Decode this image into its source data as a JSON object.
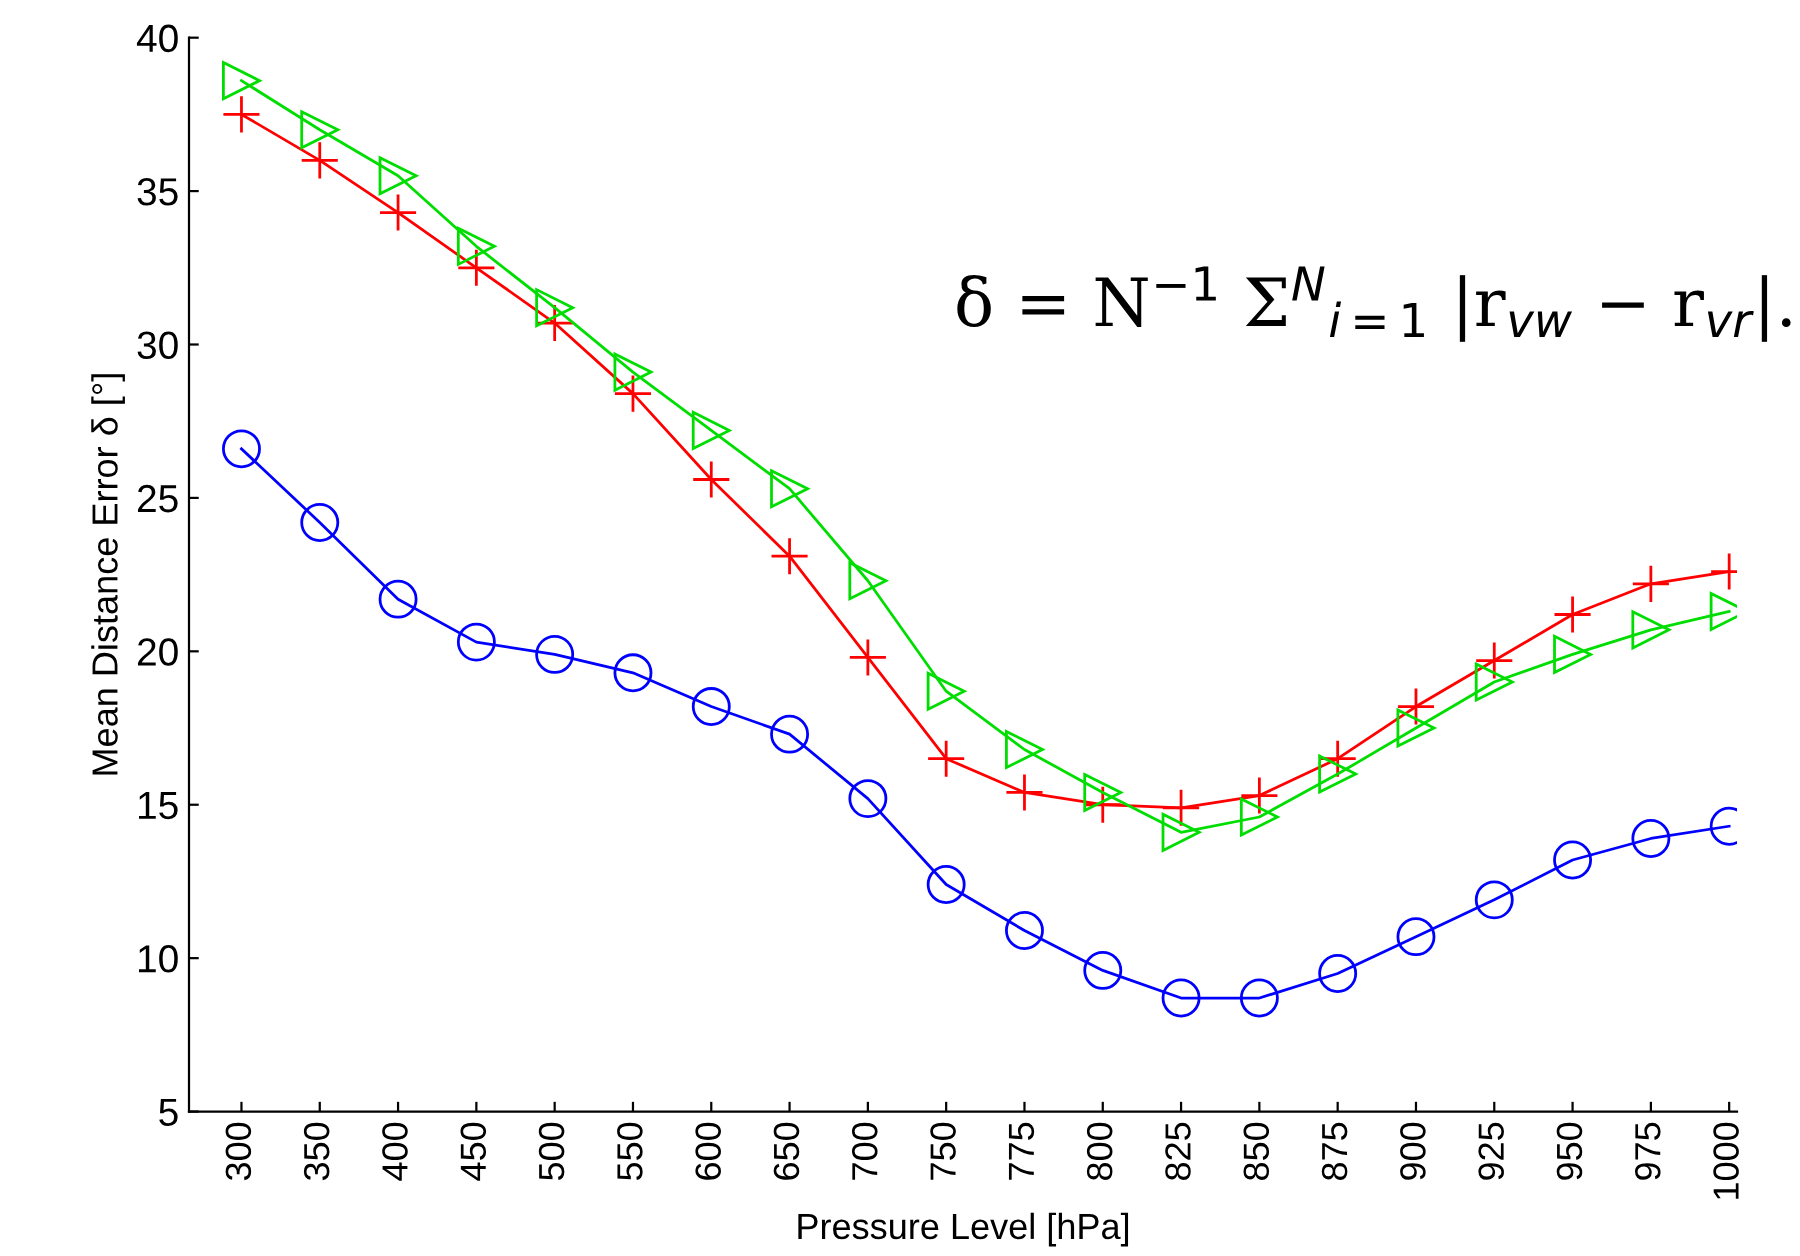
{
  "chart_data": {
    "type": "line",
    "xlabel": "Pressure Level [hPa]",
    "ylabel": "Mean Distance Error δ [°]",
    "categories": [
      "300",
      "350",
      "400",
      "450",
      "500",
      "550",
      "600",
      "650",
      "700",
      "750",
      "775",
      "800",
      "825",
      "850",
      "875",
      "900",
      "925",
      "950",
      "975",
      "1000"
    ],
    "ylim": [
      5,
      40
    ],
    "yticks": [
      5,
      10,
      15,
      20,
      25,
      30,
      35,
      40
    ],
    "grid": false,
    "legend": false,
    "annotations": [
      "δ = N$^{−1}$ Σ$^{N}$$_{i=1}$ |r$_{vw}$ − r$_{vr}$|."
    ],
    "series": [
      {
        "color": "#0000ff",
        "marker": "circle",
        "values": [
          26.6,
          24.2,
          21.7,
          20.3,
          19.9,
          19.3,
          18.2,
          17.3,
          15.2,
          12.4,
          10.9,
          9.6,
          8.7,
          8.7,
          9.5,
          10.7,
          11.9,
          13.2,
          13.9,
          14.3
        ]
      },
      {
        "color": "#ff0000",
        "marker": "cross",
        "values": [
          37.5,
          36.0,
          34.3,
          32.5,
          30.7,
          28.4,
          25.6,
          23.1,
          19.8,
          16.5,
          15.4,
          15.0,
          14.9,
          15.3,
          16.5,
          18.2,
          19.7,
          21.2,
          22.2,
          22.6
        ]
      },
      {
        "color": "#00dd00",
        "marker": "triangle",
        "values": [
          38.6,
          37.0,
          35.5,
          33.2,
          31.2,
          29.1,
          27.2,
          25.3,
          22.3,
          18.7,
          16.8,
          15.4,
          14.1,
          14.6,
          16.0,
          17.5,
          19.0,
          19.9,
          20.7,
          21.3
        ]
      }
    ]
  }
}
